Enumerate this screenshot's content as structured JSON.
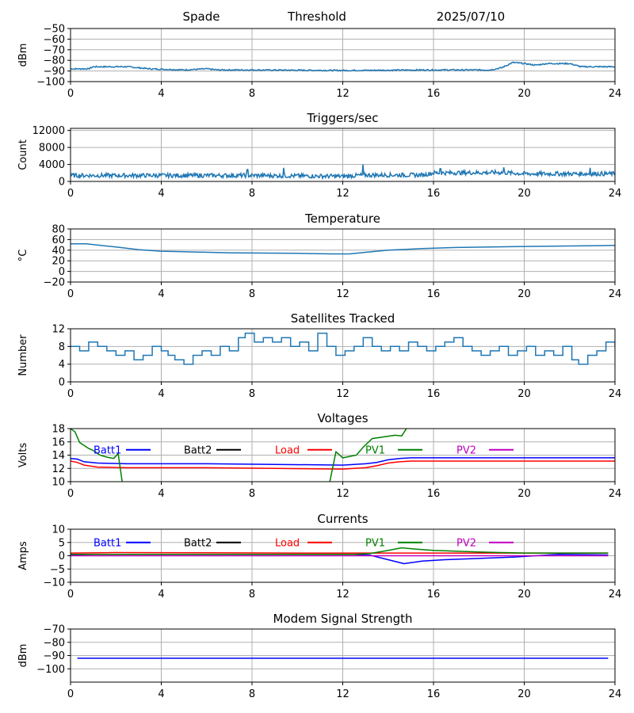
{
  "header": {
    "site": "Spade",
    "mode": "Threshold",
    "date": "2025/07/10"
  },
  "chart_data": [
    {
      "type": "line",
      "name": "noise",
      "title": "",
      "ylabel": "dBm",
      "xlim": [
        0,
        24
      ],
      "xticks": [
        0,
        4,
        8,
        12,
        16,
        20,
        24
      ],
      "ylim": [
        -100,
        -50
      ],
      "yticks": [
        -100,
        -90,
        -80,
        -70,
        -60,
        -50
      ],
      "grid": true,
      "series": [
        {
          "color": "#1f77b4",
          "noise": 0.6,
          "x": [
            0,
            0.8,
            1.0,
            2.5,
            3.5,
            5.0,
            6.0,
            6.5,
            8.0,
            12.0,
            16.0,
            18.5,
            19.0,
            19.5,
            20.0,
            20.5,
            21.0,
            22.0,
            22.5,
            24.0
          ],
          "y": [
            -88,
            -88,
            -86,
            -86,
            -88,
            -89,
            -88,
            -89,
            -89,
            -89.5,
            -89,
            -89,
            -87,
            -82,
            -83,
            -84.5,
            -83,
            -83,
            -86,
            -86
          ]
        }
      ]
    },
    {
      "type": "line",
      "name": "triggers",
      "title": "Triggers/sec",
      "ylabel": "Count",
      "xlim": [
        0,
        24
      ],
      "xticks": [
        0,
        4,
        8,
        12,
        16,
        20,
        24
      ],
      "ylim": [
        0,
        12500
      ],
      "yticks": [
        0,
        4000,
        8000,
        12000
      ],
      "grid": true,
      "series": [
        {
          "color": "#1f77b4",
          "noise": 500,
          "x": [
            0,
            8,
            12,
            13,
            15.5,
            16,
            19,
            20,
            24
          ],
          "y": [
            1400,
            1400,
            1200,
            1500,
            1500,
            2000,
            2100,
            1800,
            1800
          ],
          "spikes": [
            [
              7.8,
              2800
            ],
            [
              9.4,
              3200
            ],
            [
              12.9,
              4000
            ],
            [
              16.3,
              3000
            ],
            [
              19.1,
              3300
            ],
            [
              22.9,
              3200
            ]
          ]
        }
      ]
    },
    {
      "type": "line",
      "name": "temperature",
      "title": "Temperature",
      "ylabel": "°C",
      "xlim": [
        0,
        24
      ],
      "xticks": [
        0,
        4,
        8,
        12,
        16,
        20,
        24
      ],
      "ylim": [
        -20,
        80
      ],
      "yticks": [
        -20,
        0,
        20,
        40,
        60,
        80
      ],
      "grid": true,
      "series": [
        {
          "color": "#1f77b4",
          "noise": 0,
          "x": [
            0,
            0.7,
            2,
            3,
            4,
            5,
            7,
            10,
            11.5,
            12.3,
            13,
            14,
            15.5,
            17,
            20,
            24
          ],
          "y": [
            52,
            52,
            46,
            41,
            38,
            37,
            35,
            34,
            33,
            33,
            36,
            40,
            43,
            45,
            47,
            49
          ]
        }
      ]
    },
    {
      "type": "line",
      "name": "satellites",
      "title": "Satellites Tracked",
      "ylabel": "Number",
      "xlim": [
        0,
        24
      ],
      "xticks": [
        0,
        4,
        8,
        12,
        16,
        20,
        24
      ],
      "ylim": [
        0,
        12
      ],
      "yticks": [
        0,
        4,
        8,
        12
      ],
      "grid": true,
      "series": [
        {
          "color": "#1f77b4",
          "step": true,
          "x": [
            0,
            0.4,
            0.8,
            1.2,
            1.6,
            2.0,
            2.4,
            2.8,
            3.2,
            3.6,
            4.0,
            4.3,
            4.6,
            5.0,
            5.4,
            5.8,
            6.2,
            6.6,
            7.0,
            7.4,
            7.7,
            8.1,
            8.5,
            8.9,
            9.3,
            9.7,
            10.1,
            10.5,
            10.9,
            11.3,
            11.7,
            12.1,
            12.5,
            12.9,
            13.3,
            13.7,
            14.1,
            14.5,
            14.9,
            15.3,
            15.7,
            16.1,
            16.5,
            16.9,
            17.3,
            17.7,
            18.1,
            18.5,
            18.9,
            19.3,
            19.7,
            20.1,
            20.5,
            20.9,
            21.3,
            21.7,
            22.1,
            22.4,
            22.8,
            23.2,
            23.6,
            24.0
          ],
          "y": [
            8,
            7,
            9,
            8,
            7,
            6,
            7,
            5,
            6,
            8,
            7,
            6,
            5,
            4,
            6,
            7,
            6,
            8,
            7,
            10,
            11,
            9,
            10,
            9,
            10,
            8,
            9,
            7,
            11,
            8,
            6,
            7,
            8,
            10,
            8,
            7,
            8,
            7,
            9,
            8,
            7,
            8,
            9,
            10,
            8,
            7,
            6,
            7,
            8,
            6,
            7,
            8,
            6,
            7,
            6,
            8,
            5,
            4,
            6,
            7,
            9,
            8
          ]
        }
      ]
    },
    {
      "type": "line",
      "name": "voltages",
      "title": "Voltages",
      "ylabel": "Volts",
      "xlim": [
        0,
        24
      ],
      "xticks": [
        0,
        4,
        8,
        12,
        16,
        20,
        24
      ],
      "ylim": [
        10,
        18
      ],
      "yticks": [
        10,
        12,
        14,
        16,
        18
      ],
      "grid": true,
      "legend": [
        "Batt1",
        "Batt2",
        "Load",
        "PV1",
        "PV2"
      ],
      "series": [
        {
          "name": "Batt1",
          "color": "#0000ff",
          "x": [
            0,
            0.3,
            0.6,
            1.2,
            2.5,
            6,
            9,
            12,
            13,
            13.5,
            14,
            14.5,
            15,
            16,
            24
          ],
          "y": [
            13.5,
            13.4,
            13.0,
            12.8,
            12.7,
            12.7,
            12.6,
            12.5,
            12.7,
            12.9,
            13.3,
            13.5,
            13.6,
            13.6,
            13.6
          ]
        },
        {
          "name": "Batt2",
          "color": "#000000",
          "x": [],
          "y": []
        },
        {
          "name": "Load",
          "color": "#ff0000",
          "x": [
            0,
            0.3,
            0.6,
            1.2,
            2.5,
            6,
            9,
            12,
            13,
            13.5,
            14,
            14.5,
            15,
            16,
            24
          ],
          "y": [
            13.1,
            12.9,
            12.5,
            12.2,
            12.1,
            12.1,
            12.0,
            11.9,
            12.1,
            12.4,
            12.8,
            13.0,
            13.1,
            13.1,
            13.1
          ]
        },
        {
          "name": "PV1",
          "color": "#008000",
          "x": [
            0,
            0.2,
            0.4,
            0.8,
            1.0,
            1.3,
            1.6,
            1.9,
            2.1,
            2.3,
            11.4,
            11.7,
            12.0,
            12.6,
            12.9,
            13.3,
            14.3,
            14.6,
            14.9
          ],
          "y": [
            18,
            17.5,
            15.9,
            15.0,
            14.7,
            14.0,
            13.7,
            13.5,
            14.2,
            9.5,
            9.5,
            14.5,
            13.6,
            14.0,
            15.2,
            16.5,
            17.0,
            16.9,
            18.5
          ]
        },
        {
          "name": "PV2",
          "color": "#bf00bf",
          "x": [],
          "y": []
        }
      ]
    },
    {
      "type": "line",
      "name": "currents",
      "title": "Currents",
      "ylabel": "Amps",
      "xlim": [
        0,
        24
      ],
      "xticks": [
        0,
        4,
        8,
        12,
        16,
        20,
        24
      ],
      "ylim": [
        -10,
        10
      ],
      "yticks": [
        -10,
        -5,
        0,
        5,
        10
      ],
      "grid": true,
      "legend": [
        "Batt1",
        "Batt2",
        "Load",
        "PV1",
        "PV2"
      ],
      "series": [
        {
          "name": "Batt1",
          "color": "#0000ff",
          "x": [
            0,
            1,
            12.5,
            13.2,
            14,
            14.7,
            15.5,
            16.5,
            18,
            19.5,
            20.5,
            21.5,
            23.7
          ],
          "y": [
            0.3,
            0.5,
            0.5,
            0.2,
            -1.5,
            -3.0,
            -2.0,
            -1.5,
            -1.0,
            -0.5,
            0.0,
            0.5,
            0.3
          ]
        },
        {
          "name": "Batt2",
          "color": "#000000",
          "x": [],
          "y": []
        },
        {
          "name": "Load",
          "color": "#ff0000",
          "x": [
            0,
            2,
            6,
            10,
            14,
            18,
            23.7
          ],
          "y": [
            1.0,
            1.2,
            1.1,
            1.0,
            1.0,
            1.0,
            1.0
          ]
        },
        {
          "name": "PV1",
          "color": "#008000",
          "x": [
            0,
            12.5,
            13.2,
            14,
            14.6,
            15.2,
            16,
            17,
            18,
            19,
            20,
            23.7
          ],
          "y": [
            0.5,
            0.5,
            0.8,
            2.0,
            3.0,
            2.5,
            2.0,
            1.7,
            1.4,
            1.2,
            1.0,
            1.0
          ]
        },
        {
          "name": "PV2",
          "color": "#bf00bf",
          "x": [
            0,
            23.7
          ],
          "y": [
            0.0,
            0.0
          ]
        }
      ]
    },
    {
      "type": "line",
      "name": "modem",
      "title": "Modem Signal Strength",
      "ylabel": "dBm",
      "xlim": [
        0,
        24
      ],
      "xticks": [
        0,
        4,
        8,
        12,
        16,
        20,
        24
      ],
      "ylim": [
        -110,
        -70
      ],
      "yticks": [
        -100,
        -90,
        -80,
        -70
      ],
      "grid": true,
      "series": [
        {
          "color": "#0000ff",
          "x": [
            0.3,
            23.7
          ],
          "y": [
            -92,
            -92
          ]
        }
      ]
    }
  ]
}
